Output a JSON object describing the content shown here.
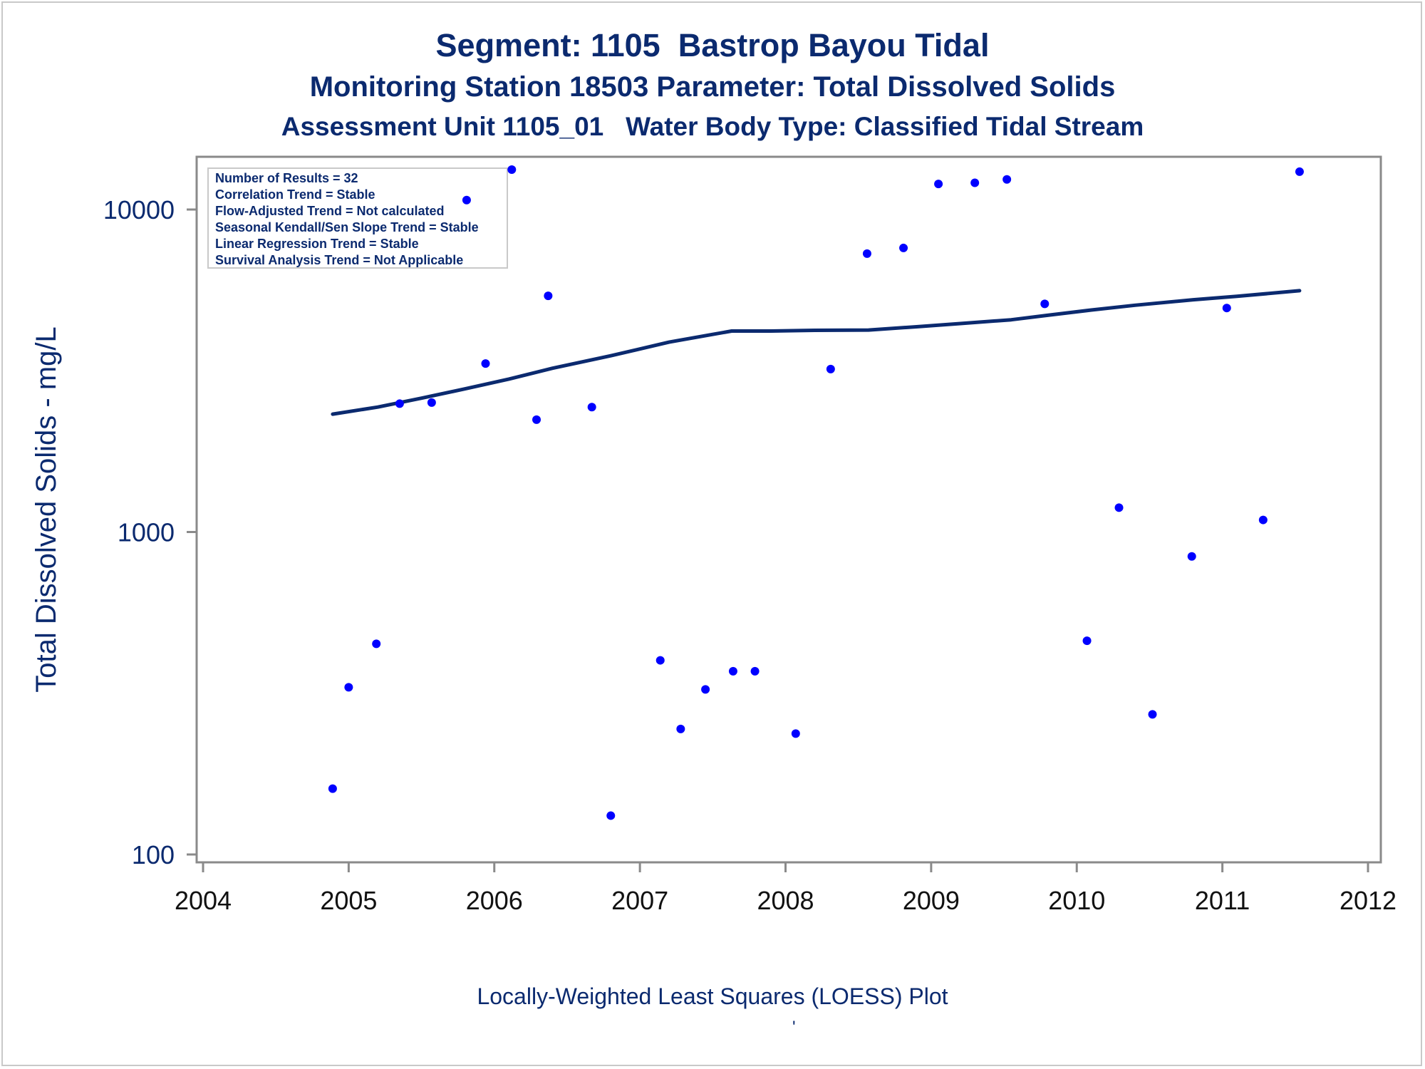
{
  "title": "Segment: 1105  Bastrop Bayou Tidal",
  "subtitle": "Monitoring Station 18503 Parameter: Total Dissolved Solids",
  "subtitle2": "Assessment Unit 1105_01   Water Body Type: Classified Tidal Stream",
  "footnote": "Locally-Weighted Least Squares (LOESS) Plot",
  "footnote_mark": "'",
  "colors": {
    "text": "#0b2a6f",
    "points": "#0000ff",
    "line": "#0b2a6f",
    "axis": "#8a8a8a"
  },
  "chart_data": {
    "type": "scatter",
    "ylabel": "Total Dissolved Solids - mg/L",
    "xlabel": "",
    "y_scale": "log",
    "xlim": [
      2004,
      2012
    ],
    "ylim": [
      95,
      14000
    ],
    "x_ticks": [
      "2004",
      "2005",
      "2006",
      "2007",
      "2008",
      "2009",
      "2010",
      "2011",
      "2012"
    ],
    "y_ticks": [
      "100",
      "1000",
      "10000"
    ],
    "grid": false,
    "legend_box": {
      "placement": "top-left",
      "lines": [
        "Number of Results = 32",
        "Correlation Trend = Stable",
        "Flow-Adjusted Trend = Not calculated",
        "Seasonal Kendall/Sen Slope Trend = Stable",
        "Linear Regression Trend = Stable",
        "Survival Analysis Trend = Not Applicable"
      ]
    },
    "series": [
      {
        "kind": "points",
        "x": [
          2004.89,
          2005.0,
          2005.19,
          2005.35,
          2005.57,
          2005.81,
          2005.94,
          2006.12,
          2006.29,
          2006.37,
          2006.67,
          2006.8,
          2007.14,
          2007.28,
          2007.45,
          2007.64,
          2007.79,
          2008.07,
          2008.31,
          2008.56,
          2008.81,
          2009.05,
          2009.3,
          2009.52,
          2009.78,
          2010.07,
          2010.29,
          2010.52,
          2010.79,
          2011.03,
          2011.28,
          2011.53
        ],
        "y": [
          160,
          330,
          450,
          2500,
          2520,
          10700,
          3330,
          13300,
          2230,
          5400,
          2440,
          132,
          400,
          245,
          325,
          370,
          370,
          237,
          3200,
          7300,
          7600,
          12000,
          12100,
          12400,
          5100,
          460,
          1190,
          272,
          840,
          4950,
          1090,
          13100
        ]
      },
      {
        "kind": "loess",
        "x": [
          2004.89,
          2005.2,
          2005.5,
          2005.8,
          2006.1,
          2006.4,
          2006.8,
          2007.2,
          2007.5,
          2007.63,
          2007.9,
          2008.2,
          2008.57,
          2008.9,
          2009.2,
          2009.55,
          2009.8,
          2010.1,
          2010.4,
          2010.8,
          2011.1,
          2011.53
        ],
        "y": [
          2320,
          2440,
          2600,
          2780,
          2980,
          3220,
          3520,
          3880,
          4100,
          4200,
          4200,
          4220,
          4230,
          4330,
          4430,
          4550,
          4700,
          4880,
          5050,
          5250,
          5380,
          5600
        ]
      }
    ]
  }
}
